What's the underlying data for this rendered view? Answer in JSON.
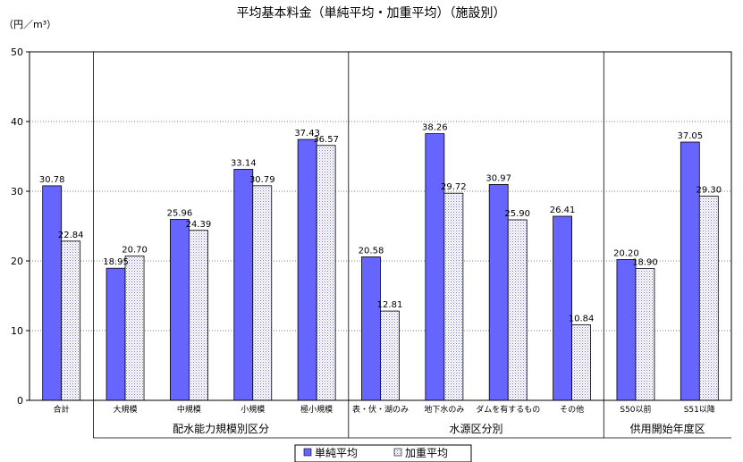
{
  "chart_data": {
    "type": "bar",
    "title": "平均基本料金（単純平均・加重平均）（施設別）",
    "unit_label": "（円／m³）",
    "ylim": [
      0,
      50
    ],
    "yticks": [
      0,
      10,
      20,
      30,
      40,
      50
    ],
    "grid": true,
    "legend_placement": "bottom",
    "categories": [
      "合計",
      "大規模",
      "中規模",
      "小規模",
      "極小規模",
      "表・伏・湖のみ",
      "地下水のみ",
      "ダムを有するもの",
      "その他",
      "S50以前",
      "S51以降"
    ],
    "series": [
      {
        "name": "単純平均",
        "color": "#6666ff",
        "values": [
          30.78,
          18.95,
          25.96,
          33.14,
          37.43,
          20.58,
          38.26,
          30.97,
          26.41,
          20.2,
          37.05
        ],
        "labels": [
          "30.78",
          "18.95",
          "25.96",
          "33.14",
          "37.43",
          "20.58",
          "38.26",
          "30.97",
          "26.41",
          "20.20",
          "37.05"
        ]
      },
      {
        "name": "加重平均",
        "color": "#ccccff",
        "values": [
          22.84,
          20.7,
          24.39,
          30.79,
          36.57,
          12.81,
          29.72,
          25.9,
          10.84,
          18.9,
          29.3
        ],
        "labels": [
          "22.84",
          "20.70",
          "24.39",
          "30.79",
          "36.57",
          "12.81",
          "29.72",
          "25.90",
          "10.84",
          "18.90",
          "29.30"
        ]
      }
    ],
    "groups": [
      {
        "label": "配水能力規模別区分",
        "start": 1,
        "end": 4
      },
      {
        "label": "水源区分別",
        "start": 5,
        "end": 8
      },
      {
        "label": "供用開始年度区",
        "start": 9,
        "end": 10
      }
    ]
  }
}
